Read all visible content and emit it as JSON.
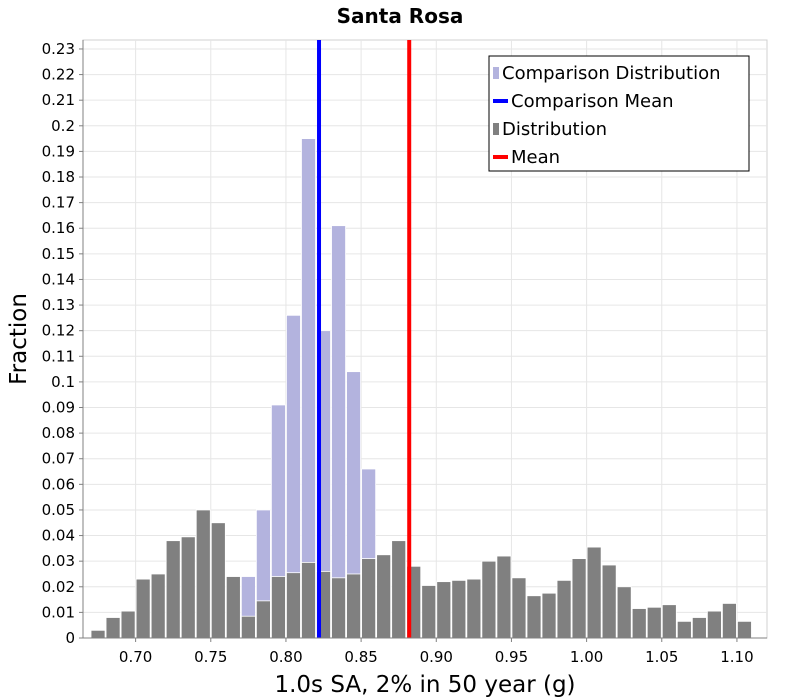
{
  "chart_data": {
    "type": "bar",
    "title": "Santa Rosa",
    "xlabel": "1.0s SA, 2% in 50 year (g)",
    "ylabel": "Fraction",
    "xlim": [
      0.665,
      1.12
    ],
    "ylim": [
      0,
      0.2335
    ],
    "bin_width": 0.01,
    "x_ticks": [
      "0.70",
      "0.75",
      "0.80",
      "0.85",
      "0.90",
      "0.95",
      "1.00",
      "1.05",
      "1.10"
    ],
    "y_ticks": [
      "0",
      "0.01",
      "0.02",
      "0.03",
      "0.04",
      "0.05",
      "0.06",
      "0.07",
      "0.08",
      "0.09",
      "0.1",
      "0.11",
      "0.12",
      "0.13",
      "0.14",
      "0.15",
      "0.16",
      "0.17",
      "0.18",
      "0.19",
      "0.2",
      "0.21",
      "0.22",
      "0.23"
    ],
    "grid": true,
    "legend_position": "top-right",
    "series": [
      {
        "name": "Comparison Distribution",
        "color": "#b3b3de",
        "x": [
          0.775,
          0.785,
          0.795,
          0.805,
          0.815,
          0.825,
          0.835,
          0.845,
          0.855
        ],
        "values": [
          0.024,
          0.05,
          0.091,
          0.126,
          0.195,
          0.12,
          0.161,
          0.104,
          0.066
        ]
      },
      {
        "name": "Distribution",
        "color": "#808080",
        "x": [
          0.675,
          0.685,
          0.695,
          0.705,
          0.715,
          0.725,
          0.735,
          0.745,
          0.755,
          0.765,
          0.775,
          0.785,
          0.795,
          0.805,
          0.815,
          0.825,
          0.835,
          0.845,
          0.855,
          0.865,
          0.875,
          0.885,
          0.895,
          0.905,
          0.915,
          0.925,
          0.935,
          0.945,
          0.955,
          0.965,
          0.975,
          0.985,
          0.995,
          1.005,
          1.015,
          1.025,
          1.035,
          1.045,
          1.055,
          1.065,
          1.075,
          1.085,
          1.095,
          1.105
        ],
        "values": [
          0.003,
          0.008,
          0.0105,
          0.023,
          0.025,
          0.038,
          0.0395,
          0.05,
          0.045,
          0.024,
          0.0085,
          0.0145,
          0.024,
          0.0255,
          0.0295,
          0.026,
          0.0235,
          0.025,
          0.031,
          0.0325,
          0.038,
          0.028,
          0.0205,
          0.022,
          0.0225,
          0.023,
          0.03,
          0.032,
          0.0235,
          0.0165,
          0.0175,
          0.0225,
          0.031,
          0.0355,
          0.0285,
          0.02,
          0.0115,
          0.012,
          0.013,
          0.0065,
          0.008,
          0.0105,
          0.0135,
          0.0065
        ]
      }
    ],
    "lines": [
      {
        "name": "Comparison Mean",
        "color": "#0000ff",
        "x": 0.822
      },
      {
        "name": "Mean",
        "color": "#ff0000",
        "x": 0.882
      }
    ],
    "legend": [
      {
        "label": "Comparison Distribution",
        "kind": "square",
        "color": "#b3b3de"
      },
      {
        "label": "Comparison Mean",
        "kind": "line",
        "color": "#0000ff"
      },
      {
        "label": "Distribution",
        "kind": "square",
        "color": "#808080"
      },
      {
        "label": "Mean",
        "kind": "line",
        "color": "#ff0000"
      }
    ]
  }
}
